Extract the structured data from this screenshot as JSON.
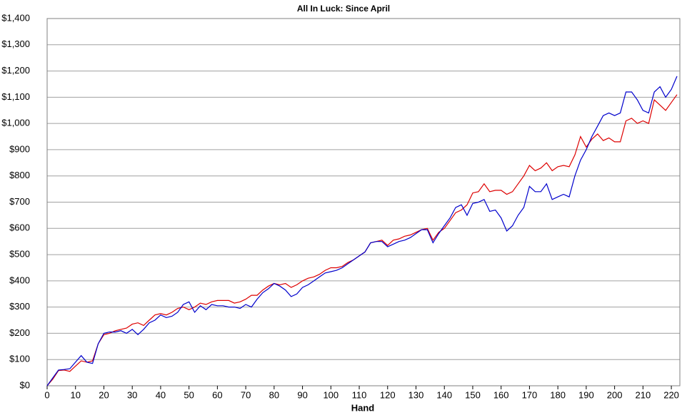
{
  "chart_data": {
    "type": "line",
    "title": "All In Luck: Since April",
    "x_label": "Hand",
    "x": [
      0,
      2,
      4,
      6,
      8,
      10,
      12,
      14,
      16,
      18,
      20,
      22,
      24,
      26,
      28,
      30,
      32,
      34,
      36,
      38,
      40,
      42,
      44,
      46,
      48,
      50,
      52,
      54,
      56,
      58,
      60,
      62,
      64,
      66,
      68,
      70,
      72,
      74,
      76,
      78,
      80,
      82,
      84,
      86,
      88,
      90,
      92,
      94,
      96,
      98,
      100,
      102,
      104,
      106,
      108,
      110,
      112,
      114,
      116,
      118,
      120,
      122,
      124,
      126,
      128,
      130,
      132,
      134,
      136,
      138,
      140,
      142,
      144,
      146,
      148,
      150,
      152,
      154,
      156,
      158,
      160,
      162,
      164,
      166,
      168,
      170,
      172,
      174,
      176,
      178,
      180,
      182,
      184,
      186,
      188,
      190,
      192,
      194,
      196,
      198,
      200,
      202,
      204,
      206,
      208,
      210,
      212,
      214,
      216,
      218,
      220,
      222
    ],
    "series": [
      {
        "color": "#0000cc",
        "values": [
          0,
          30,
          60,
          62,
          65,
          90,
          115,
          90,
          85,
          160,
          200,
          205,
          205,
          210,
          200,
          215,
          195,
          215,
          240,
          250,
          270,
          260,
          265,
          280,
          310,
          320,
          280,
          305,
          290,
          310,
          305,
          305,
          300,
          300,
          295,
          310,
          300,
          330,
          355,
          370,
          390,
          380,
          365,
          340,
          350,
          375,
          385,
          400,
          415,
          430,
          435,
          440,
          450,
          465,
          480,
          495,
          510,
          545,
          550,
          550,
          530,
          540,
          550,
          555,
          565,
          580,
          595,
          595,
          545,
          580,
          610,
          640,
          680,
          690,
          650,
          695,
          700,
          710,
          665,
          670,
          640,
          590,
          610,
          650,
          680,
          760,
          740,
          740,
          770,
          710,
          720,
          730,
          720,
          800,
          860,
          900,
          950,
          990,
          1030,
          1040,
          1030,
          1040,
          1120,
          1120,
          1090,
          1050,
          1040,
          1120,
          1140,
          1100,
          1130,
          1180
        ]
      },
      {
        "color": "#dd0000",
        "values": [
          0,
          25,
          58,
          60,
          55,
          75,
          95,
          90,
          95,
          160,
          195,
          200,
          210,
          215,
          220,
          235,
          240,
          230,
          250,
          270,
          275,
          270,
          280,
          295,
          300,
          290,
          300,
          315,
          310,
          320,
          325,
          325,
          325,
          315,
          320,
          330,
          345,
          345,
          365,
          380,
          390,
          385,
          390,
          375,
          385,
          400,
          410,
          415,
          425,
          440,
          450,
          450,
          455,
          470,
          480,
          495,
          510,
          545,
          550,
          555,
          535,
          555,
          560,
          570,
          575,
          585,
          595,
          600,
          555,
          585,
          600,
          630,
          660,
          670,
          690,
          735,
          740,
          770,
          740,
          745,
          745,
          730,
          740,
          770,
          800,
          840,
          820,
          830,
          850,
          820,
          835,
          840,
          835,
          880,
          950,
          910,
          940,
          960,
          935,
          945,
          930,
          930,
          1010,
          1020,
          1000,
          1010,
          1000,
          1090,
          1070,
          1050,
          1080,
          1110
        ]
      }
    ],
    "xlim": [
      0,
      223
    ],
    "xticks": [
      0,
      10,
      20,
      30,
      40,
      50,
      60,
      70,
      80,
      90,
      100,
      110,
      120,
      130,
      140,
      150,
      160,
      170,
      180,
      190,
      200,
      210,
      220
    ],
    "ylim": [
      0,
      1400
    ],
    "yticks": [
      {
        "value": 0,
        "label": "$0"
      },
      {
        "value": 100,
        "label": "$100"
      },
      {
        "value": 200,
        "label": "$200"
      },
      {
        "value": 300,
        "label": "$300"
      },
      {
        "value": 400,
        "label": "$400"
      },
      {
        "value": 500,
        "label": "$500"
      },
      {
        "value": 600,
        "label": "$600"
      },
      {
        "value": 700,
        "label": "$700"
      },
      {
        "value": 800,
        "label": "$800"
      },
      {
        "value": 900,
        "label": "$900"
      },
      {
        "value": 1000,
        "label": "$1,000"
      },
      {
        "value": 1100,
        "label": "$1,100"
      },
      {
        "value": 1200,
        "label": "$1,200"
      },
      {
        "value": 1300,
        "label": "$1,300"
      },
      {
        "value": 1400,
        "label": "$1,400"
      }
    ],
    "grid": true
  }
}
